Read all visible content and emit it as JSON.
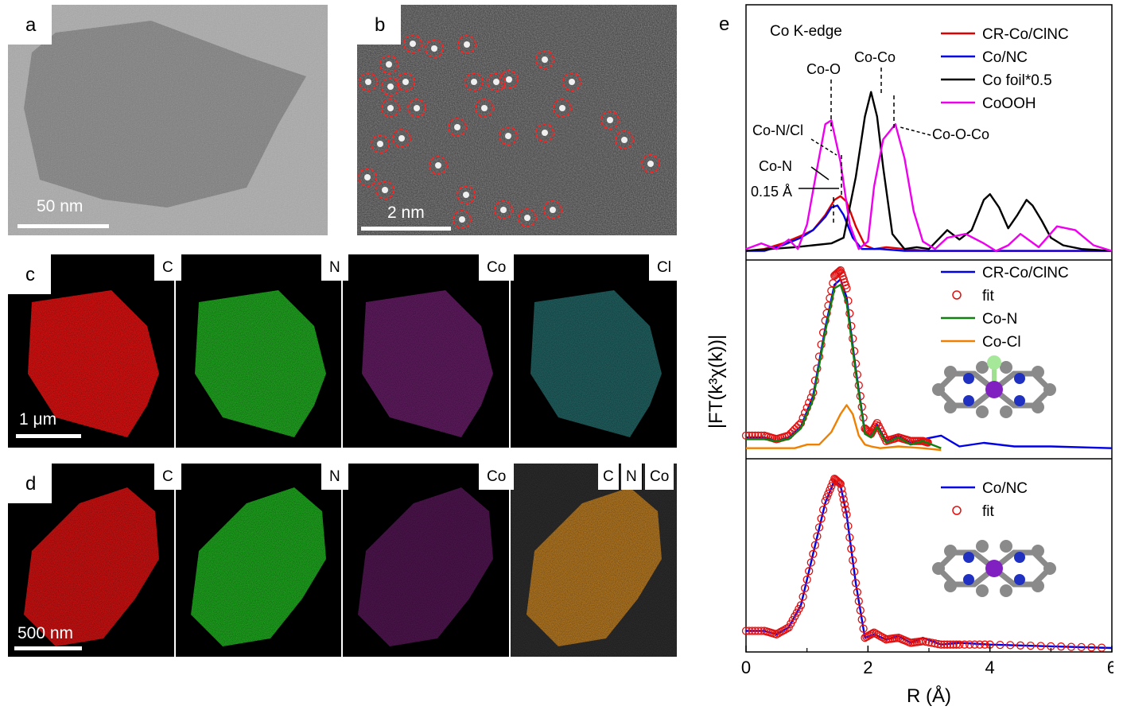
{
  "panels": {
    "a": {
      "label": "a",
      "scale_bar": "50 nm"
    },
    "b": {
      "label": "b",
      "scale_bar": "2 nm"
    },
    "c": {
      "label": "c",
      "tags": [
        "C",
        "N",
        "Co",
        "Cl"
      ],
      "scale_bar": "1 μm"
    },
    "d": {
      "label": "d",
      "tags": [
        "C",
        "N",
        "Co"
      ],
      "overlay_tags": [
        "C",
        "N",
        "Co"
      ],
      "scale_bar": "500 nm"
    },
    "e": {
      "label": "e"
    }
  },
  "colors": {
    "red": "#e00000",
    "blue": "#0000e6",
    "black": "#000000",
    "magenta": "#ee00ee",
    "green": "#108010",
    "orange": "#f08000",
    "fit_circle": "#e01010"
  },
  "chart_data": {
    "type": "line",
    "xlabel": "R (Å)",
    "ylabel": "|FT(k³χ(k))|",
    "xlim": [
      0,
      6
    ],
    "xticks": [
      "0",
      "2",
      "4",
      "6"
    ],
    "subplots": [
      {
        "title": "Co K-edge",
        "legend": "top-right",
        "annotations": [
          "Co-O",
          "Co-Co",
          "Co-N/Cl",
          "Co-N",
          "0.15 Å",
          "Co-O-Co"
        ],
        "series": [
          {
            "name": "CR-Co/ClNC",
            "color": "red",
            "x": [
              0,
              0.3,
              0.6,
              0.9,
              1.1,
              1.3,
              1.45,
              1.55,
              1.65,
              1.8,
              1.95,
              2.1,
              2.3,
              2.6,
              3.0,
              3.5,
              4.0,
              5.0,
              6.0
            ],
            "y": [
              0.01,
              0.02,
              0.05,
              0.09,
              0.12,
              0.2,
              0.28,
              0.3,
              0.27,
              0.14,
              0.04,
              0.02,
              0.03,
              0.02,
              0.01,
              0.01,
              0.01,
              0.01,
              0.01
            ]
          },
          {
            "name": "Co/NC",
            "color": "blue",
            "x": [
              0,
              0.3,
              0.6,
              0.9,
              1.1,
              1.3,
              1.4,
              1.5,
              1.6,
              1.75,
              1.9,
              2.2,
              2.6,
              3.0,
              4.0,
              5.0,
              6.0
            ],
            "y": [
              0.01,
              0.01,
              0.04,
              0.08,
              0.12,
              0.19,
              0.24,
              0.25,
              0.2,
              0.08,
              0.02,
              0.02,
              0.01,
              0.01,
              0.01,
              0.01,
              0.01
            ]
          },
          {
            "name": "Co foil*0.5",
            "color": "black",
            "x": [
              0,
              0.4,
              0.8,
              1.1,
              1.4,
              1.6,
              1.8,
              1.95,
              2.05,
              2.15,
              2.25,
              2.4,
              2.6,
              2.8,
              3.0,
              3.3,
              3.5,
              3.7,
              3.9,
              4.0,
              4.15,
              4.3,
              4.45,
              4.6,
              4.7,
              4.85,
              5.0,
              5.2,
              5.5,
              6.0
            ],
            "y": [
              0.01,
              0.02,
              0.03,
              0.04,
              0.05,
              0.08,
              0.4,
              0.72,
              0.85,
              0.72,
              0.45,
              0.1,
              0.02,
              0.03,
              0.02,
              0.12,
              0.07,
              0.12,
              0.28,
              0.31,
              0.24,
              0.13,
              0.2,
              0.28,
              0.25,
              0.17,
              0.08,
              0.04,
              0.02,
              0.01
            ]
          },
          {
            "name": "CoOOH",
            "color": "magenta",
            "x": [
              0,
              0.25,
              0.5,
              0.7,
              0.85,
              1.0,
              1.15,
              1.3,
              1.4,
              1.55,
              1.7,
              1.85,
              2.0,
              2.1,
              2.25,
              2.45,
              2.6,
              2.75,
              2.9,
              3.1,
              3.3,
              3.6,
              3.9,
              4.1,
              4.3,
              4.5,
              4.8,
              5.1,
              5.4,
              5.7,
              6.0
            ],
            "y": [
              0.02,
              0.05,
              0.02,
              0.07,
              0.02,
              0.15,
              0.42,
              0.68,
              0.7,
              0.48,
              0.15,
              0.02,
              0.06,
              0.35,
              0.6,
              0.68,
              0.5,
              0.22,
              0.06,
              0.02,
              0.08,
              0.1,
              0.05,
              0.01,
              0.04,
              0.1,
              0.03,
              0.14,
              0.12,
              0.04,
              0.01
            ]
          }
        ]
      },
      {
        "legend": "top-right",
        "series": [
          {
            "name": "CR-Co/ClNC",
            "color": "blue",
            "style": "line",
            "x": [
              0,
              0.3,
              0.5,
              0.7,
              0.9,
              1.1,
              1.3,
              1.45,
              1.55,
              1.65,
              1.8,
              1.95,
              2.05,
              2.15,
              2.3,
              2.5,
              2.7,
              2.9,
              3.2,
              3.5,
              3.9,
              4.4,
              5.0,
              6.0
            ],
            "y": [
              0.07,
              0.07,
              0.05,
              0.07,
              0.13,
              0.3,
              0.68,
              0.92,
              0.95,
              0.85,
              0.45,
              0.1,
              0.08,
              0.14,
              0.05,
              0.08,
              0.04,
              0.06,
              0.08,
              0.02,
              0.04,
              0.02,
              0.02,
              0.01
            ]
          },
          {
            "name": "fit",
            "color": "fit_circle",
            "style": "circles",
            "x": [
              0,
              0.3,
              0.5,
              0.7,
              0.9,
              1.1,
              1.3,
              1.45,
              1.55,
              1.65,
              1.8,
              1.95,
              2.05,
              2.15,
              2.3,
              2.5,
              2.7,
              2.9,
              3.0
            ],
            "y": [
              0.08,
              0.08,
              0.06,
              0.08,
              0.15,
              0.32,
              0.72,
              0.97,
              1.0,
              0.9,
              0.48,
              0.12,
              0.09,
              0.15,
              0.05,
              0.07,
              0.05,
              0.05,
              0.04
            ]
          },
          {
            "name": "Co-N",
            "color": "green",
            "style": "line",
            "x": [
              0,
              0.3,
              0.5,
              0.7,
              0.9,
              1.1,
              1.3,
              1.45,
              1.55,
              1.65,
              1.8,
              1.95,
              2.05,
              2.15,
              2.3,
              2.5,
              2.7,
              2.9,
              3.2
            ],
            "y": [
              0.06,
              0.06,
              0.05,
              0.06,
              0.12,
              0.28,
              0.66,
              0.9,
              0.92,
              0.82,
              0.43,
              0.09,
              0.07,
              0.13,
              0.04,
              0.07,
              0.03,
              0.05,
              0.01
            ]
          },
          {
            "name": "Co-Cl",
            "color": "orange",
            "style": "line",
            "x": [
              0,
              0.4,
              0.8,
              1.0,
              1.2,
              1.4,
              1.55,
              1.65,
              1.75,
              1.85,
              1.95,
              2.05,
              2.2,
              2.5,
              2.9,
              3.2
            ],
            "y": [
              0.01,
              0.01,
              0.01,
              0.03,
              0.03,
              0.1,
              0.2,
              0.25,
              0.2,
              0.08,
              0.03,
              0.02,
              0.01,
              0.02,
              0.01,
              0.0
            ]
          }
        ]
      },
      {
        "legend": "top-right",
        "series": [
          {
            "name": "Co/NC",
            "color": "blue",
            "style": "line",
            "x": [
              0,
              0.3,
              0.5,
              0.7,
              0.9,
              1.1,
              1.3,
              1.45,
              1.55,
              1.65,
              1.8,
              1.95,
              2.1,
              2.3,
              2.5,
              2.7,
              2.9,
              3.2,
              3.5,
              4.0,
              5.0,
              6.0
            ],
            "y": [
              0.1,
              0.1,
              0.08,
              0.12,
              0.25,
              0.55,
              0.85,
              0.98,
              0.95,
              0.78,
              0.38,
              0.06,
              0.08,
              0.05,
              0.07,
              0.03,
              0.06,
              0.02,
              0.03,
              0.02,
              0.01,
              0.0
            ]
          },
          {
            "name": "fit",
            "color": "fit_circle",
            "style": "circles",
            "x": [
              0,
              0.3,
              0.5,
              0.7,
              0.9,
              1.1,
              1.3,
              1.45,
              1.55,
              1.65,
              1.8,
              1.95,
              2.1,
              2.3,
              2.5,
              2.7,
              2.9,
              3.2,
              3.5,
              4.0,
              5.0,
              6.0
            ],
            "y": [
              0.1,
              0.1,
              0.08,
              0.12,
              0.25,
              0.55,
              0.86,
              0.99,
              0.96,
              0.78,
              0.38,
              0.06,
              0.09,
              0.05,
              0.06,
              0.03,
              0.04,
              0.02,
              0.02,
              0.02,
              0.01,
              0.0
            ]
          }
        ]
      }
    ]
  }
}
